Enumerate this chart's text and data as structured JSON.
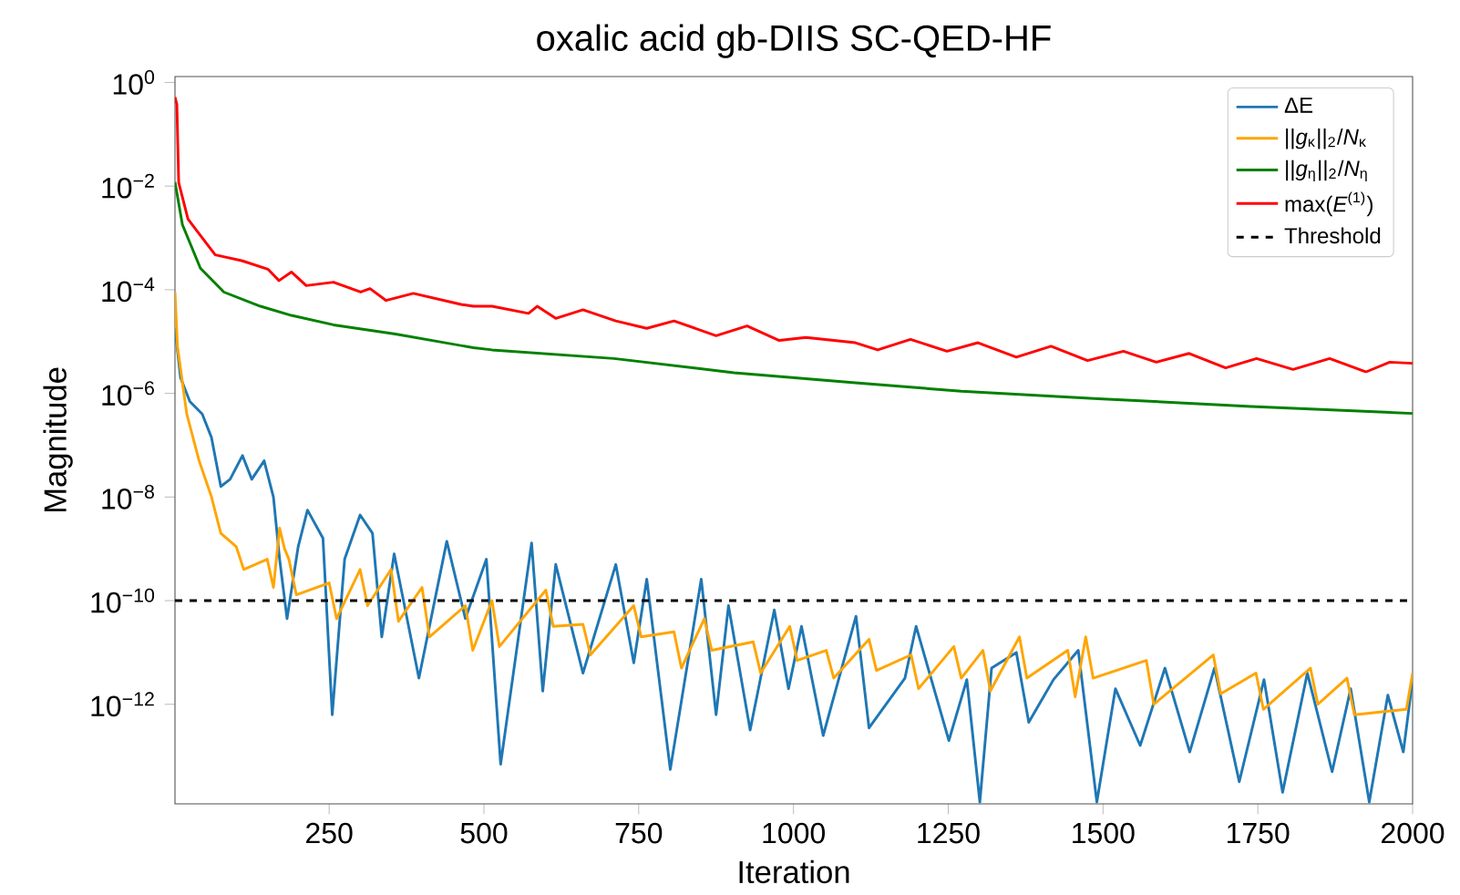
{
  "chart_data": {
    "type": "line",
    "title": "oxalic acid gb-DIIS SC-QED-HF",
    "xlabel": "Iteration",
    "ylabel": "Magnitude",
    "log": "y",
    "legend": "top right",
    "grid": false,
    "marker": "none",
    "xlim": [
      1,
      2000
    ],
    "xticks": [
      250,
      500,
      750,
      1000,
      1250,
      1500,
      1750,
      2000
    ],
    "ylim": [
      1.2e-14,
      1.3
    ],
    "yticks": [
      {
        "value": 1,
        "label": "10$^{0}$"
      },
      {
        "value": 0.01,
        "label": "10$^{−2}$"
      },
      {
        "value": 0.0001,
        "label": "10$^{−4}$"
      },
      {
        "value": 1e-06,
        "label": "10$^{−6}$"
      },
      {
        "value": 1e-08,
        "label": "10$^{−8}$"
      },
      {
        "value": 1e-10,
        "label": "10$^{−10}$"
      },
      {
        "value": 1e-12,
        "label": "10$^{−12}$"
      }
    ],
    "series": [
      {
        "name": "ΔE",
        "color": "#1f77b4",
        "x": [
          1,
          10,
          25,
          45,
          60,
          75,
          90,
          110,
          125,
          145,
          160,
          170,
          182,
          200,
          215,
          240,
          255,
          275,
          300,
          320,
          335,
          355,
          395,
          440,
          470,
          504,
          527,
          577,
          595,
          616,
          660,
          713,
          742,
          763,
          801,
          851,
          875,
          895,
          930,
          969,
          992,
          1013,
          1048,
          1101,
          1122,
          1180,
          1198,
          1251,
          1280,
          1301,
          1320,
          1360,
          1380,
          1420,
          1460,
          1490,
          1520,
          1560,
          1600,
          1640,
          1680,
          1720,
          1760,
          1790,
          1830,
          1870,
          1900,
          1930,
          1960,
          1985,
          2000
        ],
        "values": [
          1.8e-05,
          2e-06,
          7e-07,
          4e-07,
          1.4e-07,
          1.6e-08,
          2.2e-08,
          6.3e-08,
          2.2e-08,
          5e-08,
          1e-08,
          6.3e-10,
          4.5e-11,
          1.1e-09,
          5.6e-09,
          1.6e-09,
          6.3e-13,
          6.3e-10,
          4.5e-09,
          2e-09,
          2e-11,
          8e-10,
          3.2e-12,
          1.4e-09,
          4.5e-11,
          6.3e-10,
          7e-14,
          1.3e-09,
          1.8e-12,
          5e-10,
          4e-12,
          5e-10,
          6.3e-12,
          2.6e-10,
          5.5e-14,
          2.6e-10,
          6.3e-13,
          8e-11,
          3.2e-13,
          6.6e-11,
          2e-12,
          3.2e-11,
          2.5e-13,
          5e-11,
          3.5e-13,
          3.2e-12,
          3.2e-11,
          2e-13,
          3e-12,
          1.3e-14,
          5e-12,
          1e-11,
          4.5e-13,
          3e-12,
          1.1e-11,
          1.3e-14,
          2e-12,
          1.6e-13,
          5e-12,
          1.2e-13,
          5e-12,
          3.2e-14,
          3e-12,
          2e-14,
          4e-12,
          5e-14,
          2e-12,
          1.3e-14,
          1.5e-12,
          1.2e-13,
          3e-12
        ]
      },
      {
        "name": "||*g*$_{κ}$||$_{2}$/*N*$_{κ}$",
        "color": "#ffa500",
        "x": [
          1,
          5,
          20,
          40,
          60,
          75,
          100,
          112,
          150,
          160,
          170,
          178,
          185,
          197,
          250,
          262,
          300,
          312,
          350,
          362,
          400,
          412,
          470,
          482,
          513,
          525,
          600,
          612,
          660,
          672,
          742,
          754,
          807,
          819,
          856,
          868,
          935,
          947,
          994,
          1006,
          1053,
          1065,
          1122,
          1134,
          1190,
          1202,
          1259,
          1271,
          1306,
          1318,
          1365,
          1377,
          1443,
          1455,
          1472,
          1484,
          1570,
          1582,
          1678,
          1690,
          1747,
          1759,
          1835,
          1847,
          1894,
          1906,
          1990,
          2000
        ],
        "values": [
          9e-05,
          8e-06,
          4e-07,
          5e-08,
          1e-08,
          2e-09,
          1.1e-09,
          4e-10,
          6.3e-10,
          1.8e-10,
          2.5e-09,
          1e-09,
          6.3e-10,
          1.3e-10,
          2.2e-10,
          4.5e-11,
          4e-10,
          8e-11,
          4e-10,
          4e-11,
          1.8e-10,
          2e-11,
          8e-11,
          1.1e-11,
          1e-10,
          1.3e-11,
          1.6e-10,
          3.2e-11,
          3.5e-11,
          9e-12,
          8e-11,
          2e-11,
          2.5e-11,
          5e-12,
          4.5e-11,
          1.1e-11,
          1.6e-11,
          4e-12,
          3.2e-11,
          7e-12,
          1.1e-11,
          3.2e-12,
          1.8e-11,
          4.5e-12,
          9e-12,
          2e-12,
          1.3e-11,
          3.2e-12,
          1.1e-11,
          1.8e-12,
          2e-11,
          3.2e-12,
          1.1e-11,
          1.4e-12,
          2e-11,
          3.2e-12,
          7e-12,
          1e-12,
          9e-12,
          1.6e-12,
          4e-12,
          8e-13,
          5e-12,
          1e-12,
          3.2e-12,
          6.3e-13,
          8e-13,
          4e-12
        ]
      },
      {
        "name": "||*g*$_{η}$||$_{2}$/*N*$_{η}$",
        "color": "#008000",
        "x": [
          1,
          13,
          42,
          80,
          139,
          189,
          257,
          357,
          483,
          513,
          710,
          904,
          1100,
          1271,
          1492,
          1739,
          2000
        ],
        "values": [
          0.012,
          0.0018,
          0.00026,
          9e-05,
          4.8e-05,
          3.2e-05,
          2.1e-05,
          1.4e-05,
          7.6e-06,
          6.9e-06,
          4.7e-06,
          2.5e-06,
          1.6e-06,
          1.1e-06,
          7.9e-07,
          5.6e-07,
          4.1e-07
        ]
      },
      {
        "name": "max(*E*$^{(1)}$)",
        "color": "#ff0000",
        "x": [
          1,
          4,
          7,
          22,
          66,
          110,
          151,
          169,
          189,
          213,
          257,
          301,
          316,
          342,
          386,
          463,
          483,
          513,
          572,
          586,
          616,
          660,
          713,
          763,
          807,
          875,
          925,
          977,
          1020,
          1100,
          1136,
          1189,
          1248,
          1298,
          1360,
          1416,
          1475,
          1533,
          1586,
          1639,
          1698,
          1748,
          1807,
          1866,
          1925,
          1963,
          2000
        ],
        "values": [
          0.52,
          0.38,
          0.0117,
          0.0023,
          0.00047,
          0.00036,
          0.00025,
          0.00015,
          0.00022,
          0.00012,
          0.00014,
          9e-05,
          0.000105,
          6.2e-05,
          8.5e-05,
          5.2e-05,
          4.8e-05,
          4.8e-05,
          3.5e-05,
          4.8e-05,
          2.8e-05,
          4.1e-05,
          2.5e-05,
          1.8e-05,
          2.5e-05,
          1.3e-05,
          2e-05,
          1.05e-05,
          1.2e-05,
          9.5e-06,
          6.9e-06,
          1.1e-05,
          6.5e-06,
          9.5e-06,
          5e-06,
          8.1e-06,
          4.3e-06,
          6.5e-06,
          4e-06,
          5.9e-06,
          3.1e-06,
          4.7e-06,
          2.9e-06,
          4.7e-06,
          2.6e-06,
          4e-06,
          3.8e-06
        ]
      }
    ],
    "ref_lines": [
      {
        "axis": "y",
        "value": 1e-10,
        "label": "Threshold",
        "color": "#000000",
        "line_style": "dashed"
      }
    ]
  }
}
